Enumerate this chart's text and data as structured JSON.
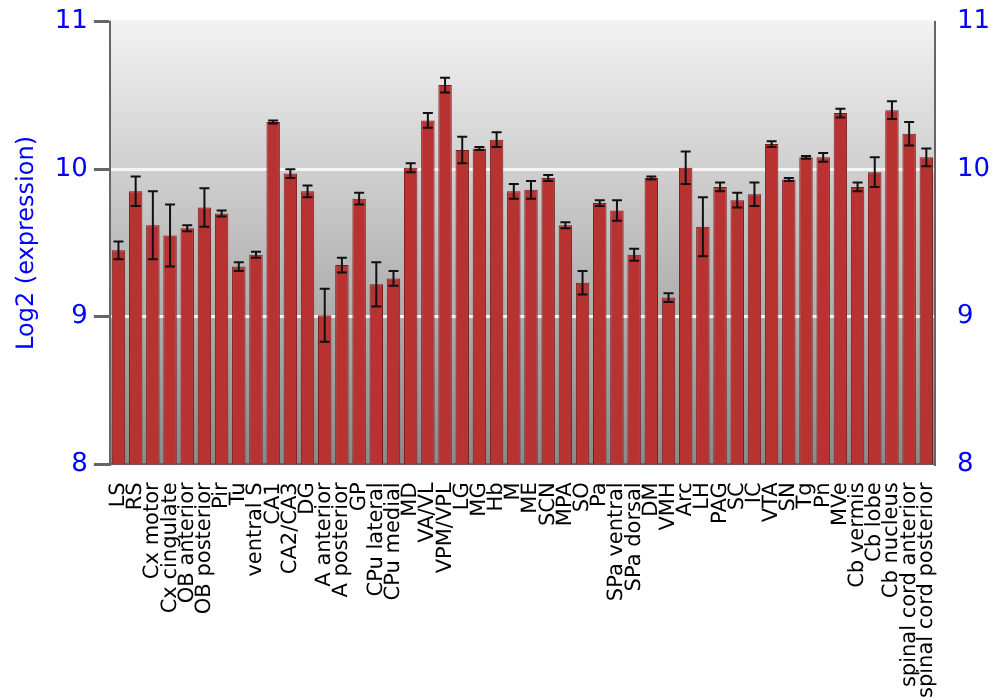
{
  "chart_data": {
    "type": "bar",
    "ylabel": "Log2 (expression)",
    "categories": [
      "LS",
      "RS",
      "Cx motor",
      "Cx cingulate",
      "OB anterior",
      "OB posterior",
      "Pir",
      "Tu",
      "ventral S",
      "CA1",
      "CA2/CA3",
      "DG",
      "A anterior",
      "A posterior",
      "GP",
      "CPu lateral",
      "CPu medial",
      "MD",
      "VA/VL",
      "VPM/VPL",
      "LG",
      "MG",
      "Hb",
      "M",
      "ME",
      "SCN",
      "MPA",
      "SO",
      "Pa",
      "SPa ventral",
      "SPa dorsal",
      "DM",
      "VMH",
      "Arc",
      "LH",
      "PAG",
      "SC",
      "IC",
      "VTA",
      "SN",
      "Tg",
      "Pn",
      "MVe",
      "Cb vermis",
      "Cb lobe",
      "Cb nucleus",
      "spinal cord anterior",
      "spinal cord posterior"
    ],
    "values": [
      9.45,
      9.85,
      9.62,
      9.55,
      9.6,
      9.74,
      9.7,
      9.34,
      9.42,
      10.32,
      9.97,
      9.85,
      9.01,
      9.35,
      9.8,
      9.22,
      9.26,
      10.01,
      10.33,
      10.57,
      10.13,
      10.14,
      10.2,
      9.85,
      9.86,
      9.94,
      9.62,
      9.23,
      9.77,
      9.72,
      9.42,
      9.94,
      9.13,
      10.01,
      9.61,
      9.88,
      9.79,
      9.83,
      10.17,
      9.93,
      10.08,
      10.08,
      10.38,
      9.88,
      9.98,
      10.4,
      10.24,
      10.08
    ],
    "errors": [
      0.06,
      0.1,
      0.23,
      0.21,
      0.02,
      0.13,
      0.02,
      0.03,
      0.02,
      0.01,
      0.03,
      0.04,
      0.18,
      0.05,
      0.04,
      0.15,
      0.05,
      0.03,
      0.05,
      0.05,
      0.09,
      0.01,
      0.05,
      0.05,
      0.06,
      0.02,
      0.02,
      0.08,
      0.02,
      0.07,
      0.04,
      0.01,
      0.03,
      0.11,
      0.2,
      0.03,
      0.05,
      0.08,
      0.02,
      0.01,
      0.01,
      0.03,
      0.03,
      0.03,
      0.1,
      0.06,
      0.08,
      0.06
    ],
    "color": "#b83232",
    "ylim": [
      8,
      11
    ],
    "yticks": [
      8,
      9,
      10,
      11
    ],
    "y2lim": [
      8,
      11
    ],
    "y2ticks": [
      8,
      9,
      10,
      11
    ],
    "grid": "y",
    "legend": false
  }
}
